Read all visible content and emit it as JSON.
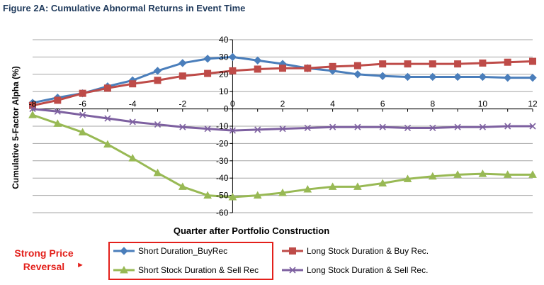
{
  "figure_title": "Figure 2A: Cumulative Abnormal Returns in Event Time",
  "annotation": {
    "line1": "Strong Price",
    "line2": "Reversal"
  },
  "chart_data": {
    "type": "line",
    "xlabel": "Quarter after Portfolio Construction",
    "ylabel": "Cumulative 5-Factor Alpha (%)",
    "xlim": [
      -8,
      12
    ],
    "ylim": [
      -60,
      40
    ],
    "x_ticks": [
      -8,
      -6,
      -4,
      -2,
      0,
      2,
      4,
      6,
      8,
      10,
      12
    ],
    "y_ticks": [
      40,
      30,
      20,
      10,
      0,
      -10,
      -20,
      -30,
      -40,
      -50,
      -60
    ],
    "grid": "horizontal",
    "legend_position": "bottom",
    "x": [
      -8,
      -7,
      -6,
      -5,
      -4,
      -3,
      -2,
      -1,
      0,
      1,
      2,
      3,
      4,
      5,
      6,
      7,
      8,
      9,
      10,
      11,
      12
    ],
    "series": [
      {
        "name": "Short Duration_BuyRec",
        "color": "#4a7ebb",
        "marker": "diamond",
        "values": [
          3.5,
          6.5,
          9,
          13,
          16.5,
          22,
          26.5,
          29,
          30,
          28,
          26,
          23.5,
          22,
          20,
          19,
          18.5,
          18.5,
          18.5,
          18.5,
          18,
          18
        ]
      },
      {
        "name": "Long Stock Duration & Buy Rec.",
        "color": "#be4b48",
        "marker": "square",
        "values": [
          2,
          5,
          9,
          12,
          14.5,
          16.5,
          19,
          20.5,
          22,
          23,
          23.5,
          23.5,
          24.5,
          25,
          26,
          26,
          26,
          26,
          26.5,
          27,
          27.5
        ]
      },
      {
        "name": "Short Stock Duration & Sell Rec",
        "color": "#98b954",
        "marker": "triangle",
        "values": [
          -3.5,
          -8.5,
          -13.5,
          -20.5,
          -28.5,
          -37,
          -45,
          -50,
          -51,
          -50,
          -48.5,
          -46.5,
          -45,
          -45,
          -43,
          -40.5,
          -39,
          -38,
          -37.5,
          -38,
          -38
        ]
      },
      {
        "name": "Long Stock Duration & Sell Rec.",
        "color": "#7d60a0",
        "marker": "x",
        "values": [
          0,
          -1.5,
          -3.5,
          -5.5,
          -7.5,
          -9,
          -10.5,
          -11.5,
          -12.5,
          -12,
          -11.5,
          -11,
          -10.5,
          -10.5,
          -10.5,
          -11,
          -11,
          -10.5,
          -10.5,
          -10,
          -10
        ]
      }
    ]
  }
}
